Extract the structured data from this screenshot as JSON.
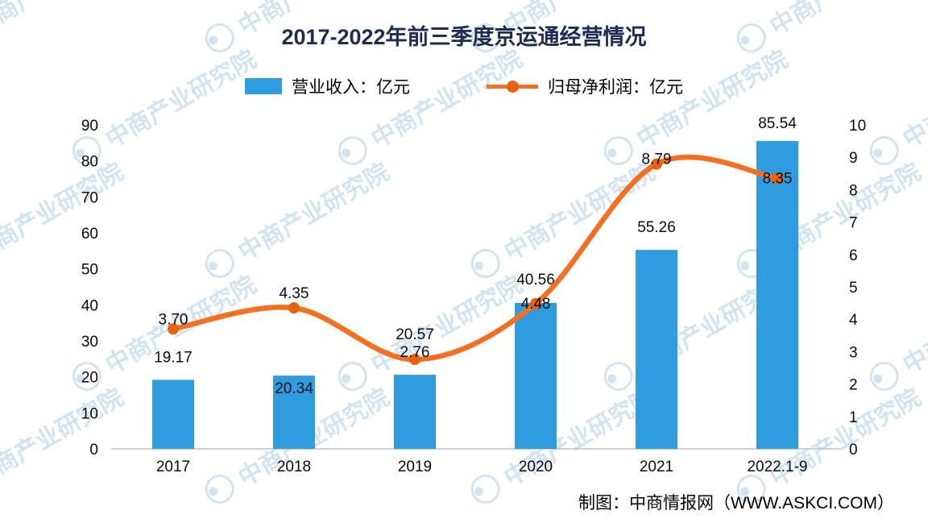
{
  "title": "2017-2022年前三季度京运通经营情况",
  "credit": "制图：中商情报网（WWW.ASKCI.COM）",
  "watermark": {
    "text": "中商产业研究院"
  },
  "colors": {
    "bar": "#2e9cdf",
    "line": "#f36f21",
    "marker": "#e8610c",
    "title": "#1d2b57",
    "watermark": "#aecfe9",
    "axis_line": "#bfbfbf",
    "label_text": "#0a0a0a"
  },
  "chart_data": {
    "type": "combo_bar_line",
    "title": "2017-2022年前三季度京运通经营情况",
    "categories": [
      "2017",
      "2018",
      "2019",
      "2020",
      "2021",
      "2022.1-9"
    ],
    "series": [
      {
        "name": "营业收入：亿元",
        "type": "bar",
        "axis": "left",
        "values": [
          19.17,
          20.34,
          20.57,
          40.56,
          55.26,
          85.54
        ],
        "labels": [
          "19.17",
          "20.34",
          "20.57",
          "40.56",
          "55.26",
          "85.54"
        ]
      },
      {
        "name": "归母净利润：亿元",
        "type": "line",
        "axis": "right",
        "values": [
          3.7,
          4.35,
          2.76,
          4.48,
          8.79,
          8.35
        ],
        "labels": [
          "3.70",
          "4.35",
          "2.76",
          "4.48",
          "8.79",
          "8.35"
        ]
      }
    ],
    "left_axis": {
      "min": 0,
      "max": 90,
      "step": 10,
      "ticks": [
        "0",
        "10",
        "20",
        "30",
        "40",
        "50",
        "60",
        "70",
        "80",
        "90"
      ]
    },
    "right_axis": {
      "min": 0,
      "max": 10,
      "step": 1,
      "ticks": [
        "0",
        "1",
        "2",
        "3",
        "4",
        "5",
        "6",
        "7",
        "8",
        "9",
        "10"
      ]
    },
    "legend_position": "top",
    "grid": "off"
  }
}
